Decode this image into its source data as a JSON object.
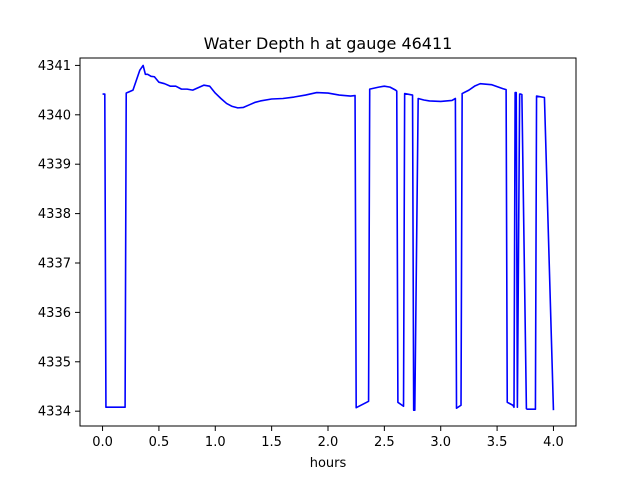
{
  "chart_data": {
    "type": "line",
    "title": "Water Depth h at gauge 46411",
    "xlabel": "hours",
    "ylabel": "",
    "xlim": [
      -0.2,
      4.2
    ],
    "ylim": [
      4333.7,
      4341.15
    ],
    "xticks": [
      0.0,
      0.5,
      1.0,
      1.5,
      2.0,
      2.5,
      3.0,
      3.5,
      4.0
    ],
    "xtick_labels": [
      "0.0",
      "0.5",
      "1.0",
      "1.5",
      "2.0",
      "2.5",
      "3.0",
      "3.5",
      "4.0"
    ],
    "yticks": [
      4334,
      4335,
      4336,
      4337,
      4338,
      4339,
      4340,
      4341
    ],
    "ytick_labels": [
      "4334",
      "4335",
      "4336",
      "4337",
      "4338",
      "4339",
      "4340",
      "4341"
    ],
    "grid": false,
    "legend": "none",
    "series": [
      {
        "color": "#0000ff",
        "x": [
          0.0,
          0.02,
          0.03,
          0.2,
          0.21,
          0.27,
          0.3,
          0.33,
          0.36,
          0.38,
          0.4,
          0.43,
          0.46,
          0.5,
          0.55,
          0.6,
          0.65,
          0.7,
          0.75,
          0.8,
          0.85,
          0.9,
          0.95,
          1.0,
          1.05,
          1.1,
          1.15,
          1.2,
          1.25,
          1.3,
          1.35,
          1.4,
          1.5,
          1.6,
          1.7,
          1.8,
          1.9,
          2.0,
          2.1,
          2.2,
          2.24,
          2.25,
          2.36,
          2.37,
          2.45,
          2.5,
          2.55,
          2.6,
          2.61,
          2.62,
          2.67,
          2.68,
          2.75,
          2.76,
          2.77,
          2.8,
          2.85,
          2.9,
          3.0,
          3.1,
          3.13,
          3.14,
          3.18,
          3.19,
          3.25,
          3.3,
          3.35,
          3.45,
          3.55,
          3.58,
          3.59,
          3.64,
          3.65,
          3.66,
          3.67,
          3.68,
          3.7,
          3.71,
          3.72,
          3.76,
          3.77,
          3.78,
          3.84,
          3.85,
          3.92,
          4.0
        ],
        "values": [
          4340.42,
          4340.42,
          4334.08,
          4334.08,
          4340.44,
          4340.5,
          4340.7,
          4340.9,
          4341.0,
          4340.82,
          4340.82,
          4340.78,
          4340.77,
          4340.66,
          4340.63,
          4340.58,
          4340.58,
          4340.52,
          4340.52,
          4340.5,
          4340.55,
          4340.6,
          4340.58,
          4340.44,
          4340.33,
          4340.23,
          4340.17,
          4340.14,
          4340.15,
          4340.2,
          4340.25,
          4340.28,
          4340.32,
          4340.33,
          4340.36,
          4340.4,
          4340.45,
          4340.44,
          4340.4,
          4340.38,
          4340.39,
          4334.07,
          4334.2,
          4340.52,
          4340.56,
          4340.58,
          4340.56,
          4340.5,
          4340.48,
          4334.18,
          4334.1,
          4340.43,
          4340.4,
          4334.02,
          4334.02,
          4340.33,
          4340.3,
          4340.28,
          4340.27,
          4340.29,
          4340.33,
          4334.06,
          4334.12,
          4340.43,
          4340.5,
          4340.58,
          4340.63,
          4340.61,
          4340.53,
          4340.51,
          4334.18,
          4334.12,
          4334.08,
          4340.45,
          4340.45,
          4334.08,
          4340.42,
          4340.42,
          4340.41,
          4334.05,
          4334.04,
          4334.04,
          4334.04,
          4340.38,
          4340.35,
          4334.02
        ]
      }
    ]
  }
}
